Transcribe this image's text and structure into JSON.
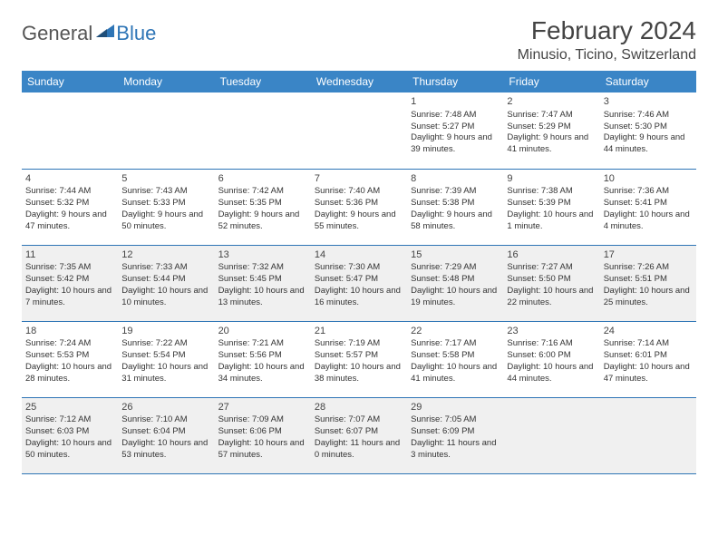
{
  "logo": {
    "general": "General",
    "blue": "Blue"
  },
  "title": "February 2024",
  "location": "Minusio, Ticino, Switzerland",
  "colors": {
    "header_bg": "#3a85c6",
    "border": "#2e75b6",
    "shaded_bg": "#f0f0f0",
    "text": "#333333",
    "logo_gray": "#555555",
    "logo_blue": "#2e75b6"
  },
  "weekdays": [
    "Sunday",
    "Monday",
    "Tuesday",
    "Wednesday",
    "Thursday",
    "Friday",
    "Saturday"
  ],
  "weeks": [
    [
      {
        "day": "",
        "lines": []
      },
      {
        "day": "",
        "lines": []
      },
      {
        "day": "",
        "lines": []
      },
      {
        "day": "",
        "lines": []
      },
      {
        "day": "1",
        "lines": [
          "Sunrise: 7:48 AM",
          "Sunset: 5:27 PM",
          "Daylight: 9 hours and 39 minutes."
        ]
      },
      {
        "day": "2",
        "lines": [
          "Sunrise: 7:47 AM",
          "Sunset: 5:29 PM",
          "Daylight: 9 hours and 41 minutes."
        ]
      },
      {
        "day": "3",
        "lines": [
          "Sunrise: 7:46 AM",
          "Sunset: 5:30 PM",
          "Daylight: 9 hours and 44 minutes."
        ]
      }
    ],
    [
      {
        "day": "4",
        "lines": [
          "Sunrise: 7:44 AM",
          "Sunset: 5:32 PM",
          "Daylight: 9 hours and 47 minutes."
        ]
      },
      {
        "day": "5",
        "lines": [
          "Sunrise: 7:43 AM",
          "Sunset: 5:33 PM",
          "Daylight: 9 hours and 50 minutes."
        ]
      },
      {
        "day": "6",
        "lines": [
          "Sunrise: 7:42 AM",
          "Sunset: 5:35 PM",
          "Daylight: 9 hours and 52 minutes."
        ]
      },
      {
        "day": "7",
        "lines": [
          "Sunrise: 7:40 AM",
          "Sunset: 5:36 PM",
          "Daylight: 9 hours and 55 minutes."
        ]
      },
      {
        "day": "8",
        "lines": [
          "Sunrise: 7:39 AM",
          "Sunset: 5:38 PM",
          "Daylight: 9 hours and 58 minutes."
        ]
      },
      {
        "day": "9",
        "lines": [
          "Sunrise: 7:38 AM",
          "Sunset: 5:39 PM",
          "Daylight: 10 hours and 1 minute."
        ]
      },
      {
        "day": "10",
        "lines": [
          "Sunrise: 7:36 AM",
          "Sunset: 5:41 PM",
          "Daylight: 10 hours and 4 minutes."
        ]
      }
    ],
    [
      {
        "day": "11",
        "lines": [
          "Sunrise: 7:35 AM",
          "Sunset: 5:42 PM",
          "Daylight: 10 hours and 7 minutes."
        ]
      },
      {
        "day": "12",
        "lines": [
          "Sunrise: 7:33 AM",
          "Sunset: 5:44 PM",
          "Daylight: 10 hours and 10 minutes."
        ]
      },
      {
        "day": "13",
        "lines": [
          "Sunrise: 7:32 AM",
          "Sunset: 5:45 PM",
          "Daylight: 10 hours and 13 minutes."
        ]
      },
      {
        "day": "14",
        "lines": [
          "Sunrise: 7:30 AM",
          "Sunset: 5:47 PM",
          "Daylight: 10 hours and 16 minutes."
        ]
      },
      {
        "day": "15",
        "lines": [
          "Sunrise: 7:29 AM",
          "Sunset: 5:48 PM",
          "Daylight: 10 hours and 19 minutes."
        ]
      },
      {
        "day": "16",
        "lines": [
          "Sunrise: 7:27 AM",
          "Sunset: 5:50 PM",
          "Daylight: 10 hours and 22 minutes."
        ]
      },
      {
        "day": "17",
        "lines": [
          "Sunrise: 7:26 AM",
          "Sunset: 5:51 PM",
          "Daylight: 10 hours and 25 minutes."
        ]
      }
    ],
    [
      {
        "day": "18",
        "lines": [
          "Sunrise: 7:24 AM",
          "Sunset: 5:53 PM",
          "Daylight: 10 hours and 28 minutes."
        ]
      },
      {
        "day": "19",
        "lines": [
          "Sunrise: 7:22 AM",
          "Sunset: 5:54 PM",
          "Daylight: 10 hours and 31 minutes."
        ]
      },
      {
        "day": "20",
        "lines": [
          "Sunrise: 7:21 AM",
          "Sunset: 5:56 PM",
          "Daylight: 10 hours and 34 minutes."
        ]
      },
      {
        "day": "21",
        "lines": [
          "Sunrise: 7:19 AM",
          "Sunset: 5:57 PM",
          "Daylight: 10 hours and 38 minutes."
        ]
      },
      {
        "day": "22",
        "lines": [
          "Sunrise: 7:17 AM",
          "Sunset: 5:58 PM",
          "Daylight: 10 hours and 41 minutes."
        ]
      },
      {
        "day": "23",
        "lines": [
          "Sunrise: 7:16 AM",
          "Sunset: 6:00 PM",
          "Daylight: 10 hours and 44 minutes."
        ]
      },
      {
        "day": "24",
        "lines": [
          "Sunrise: 7:14 AM",
          "Sunset: 6:01 PM",
          "Daylight: 10 hours and 47 minutes."
        ]
      }
    ],
    [
      {
        "day": "25",
        "lines": [
          "Sunrise: 7:12 AM",
          "Sunset: 6:03 PM",
          "Daylight: 10 hours and 50 minutes."
        ]
      },
      {
        "day": "26",
        "lines": [
          "Sunrise: 7:10 AM",
          "Sunset: 6:04 PM",
          "Daylight: 10 hours and 53 minutes."
        ]
      },
      {
        "day": "27",
        "lines": [
          "Sunrise: 7:09 AM",
          "Sunset: 6:06 PM",
          "Daylight: 10 hours and 57 minutes."
        ]
      },
      {
        "day": "28",
        "lines": [
          "Sunrise: 7:07 AM",
          "Sunset: 6:07 PM",
          "Daylight: 11 hours and 0 minutes."
        ]
      },
      {
        "day": "29",
        "lines": [
          "Sunrise: 7:05 AM",
          "Sunset: 6:09 PM",
          "Daylight: 11 hours and 3 minutes."
        ]
      },
      {
        "day": "",
        "lines": []
      },
      {
        "day": "",
        "lines": []
      }
    ]
  ],
  "shaded_rows": [
    2,
    4
  ]
}
